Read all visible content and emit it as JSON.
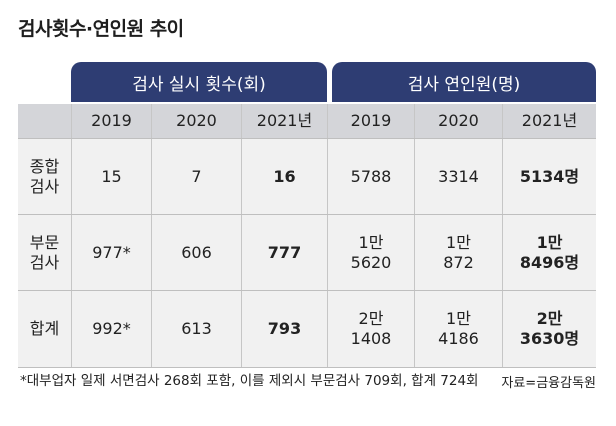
{
  "title": "검사횟수·연인원 추이",
  "header": {
    "group1": "검사 실시 횟수(회)",
    "group2": "검사 연인원(명)"
  },
  "years": [
    "2019",
    "2020",
    "2021년",
    "2019",
    "2020",
    "2021년"
  ],
  "rows": [
    {
      "label": "종합\n검사",
      "values": [
        "15",
        "7",
        "16",
        "5788",
        "3314",
        "5134명"
      ]
    },
    {
      "label": "부문\n검사",
      "values": [
        "977*",
        "606",
        "777",
        "1만\n5620",
        "1만\n872",
        "1만\n8496명"
      ]
    },
    {
      "label": "합계",
      "values": [
        "992*",
        "613",
        "793",
        "2만\n1408",
        "1만\n4186",
        "2만\n3630명"
      ]
    }
  ],
  "footnote": "*대부업자 일제 서면검사 268회 포함, 이를 제외시 부문검사 709회, 합계 724회",
  "source": "자료=금융감독원"
}
